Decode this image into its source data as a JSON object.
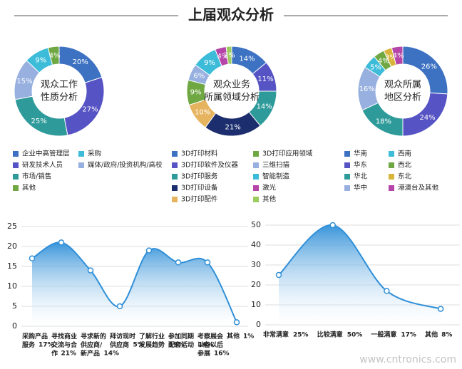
{
  "title": "上届观众分析",
  "watermark": "www.cntronics.com",
  "chart_data": [
    {
      "type": "pie",
      "donut": true,
      "center_label": [
        "观众工作",
        "性质分析"
      ],
      "categories": [
        "企业中高管理层",
        "研发技术人员",
        "市场/销售",
        "媒体/政府/投资机构/高校",
        "采购",
        "其他"
      ],
      "values": [
        20,
        27,
        25,
        15,
        9,
        4
      ],
      "value_labels": [
        "20%",
        "27%",
        "25%",
        "15%",
        "9%",
        "4%"
      ],
      "colors": [
        "#3d72c2",
        "#5653c4",
        "#2e9b9a",
        "#97b0df",
        "#3cbcd9",
        "#6fa843"
      ]
    },
    {
      "type": "pie",
      "donut": true,
      "center_label": [
        "观众业务",
        "所属领域分析"
      ],
      "categories": [
        "3D打印材料",
        "3D打印软件及仪器",
        "3D打印服务",
        "3D打印设备",
        "3D打印配件",
        "3D打印应用领域",
        "三维扫描",
        "智能制造",
        "激光",
        "其他"
      ],
      "values": [
        14,
        11,
        14,
        21,
        10,
        9,
        6,
        9,
        4,
        2
      ],
      "value_labels": [
        "14%",
        "11%",
        "14%",
        "21%",
        "10%",
        "9%",
        "6%",
        "9%",
        "4%",
        "2%"
      ],
      "colors": [
        "#3d72c2",
        "#5653c4",
        "#2e9b9a",
        "#1c2e6e",
        "#e6b35e",
        "#6fa843",
        "#97b0df",
        "#3cbcd9",
        "#b545a8",
        "#9ccc5f"
      ]
    },
    {
      "type": "pie",
      "donut": true,
      "center_label": [
        "观众所属",
        "地区分析"
      ],
      "categories": [
        "华南",
        "华东",
        "华北",
        "华中",
        "西南",
        "西北",
        "东北",
        "港澳台及其他"
      ],
      "values": [
        26,
        24,
        18,
        16,
        5,
        4,
        3,
        4
      ],
      "value_labels": [
        "26%",
        "24%",
        "18%",
        "16%",
        "5%",
        "4%",
        "3%",
        "4%"
      ],
      "colors": [
        "#3d72c2",
        "#5653c4",
        "#2e9b9a",
        "#97b0df",
        "#3cbcd9",
        "#6fa843",
        "#d8b43a",
        "#b545a8"
      ]
    },
    {
      "type": "area",
      "categories": [
        "采购产品服务",
        "寻找商业交流与合作",
        "寻求新的供应商/新产品",
        "拜访现时供应商",
        "了解行业发展趋势",
        "参加同期配套活动",
        "考察展会以备以后参展",
        "其他"
      ],
      "values": [
        17,
        21,
        14,
        5,
        19,
        16,
        16,
        1
      ],
      "value_labels": [
        "17%",
        "21%",
        "14%",
        "5%",
        "19%",
        "16%",
        "16%",
        "1%"
      ],
      "color": "#2f8fd8",
      "ylim": [
        0,
        25
      ],
      "yticks": [
        0,
        5,
        10,
        15,
        20,
        25
      ],
      "grid": true
    },
    {
      "type": "area",
      "categories": [
        "非常满意",
        "比较满意",
        "一般满意",
        "其他"
      ],
      "values": [
        25,
        50,
        17,
        8
      ],
      "value_labels": [
        "25%",
        "50%",
        "17%",
        "8%"
      ],
      "color": "#2f8fd8",
      "ylim": [
        0,
        50
      ],
      "yticks": [
        0,
        10,
        20,
        30,
        40,
        50
      ],
      "grid": true
    }
  ]
}
